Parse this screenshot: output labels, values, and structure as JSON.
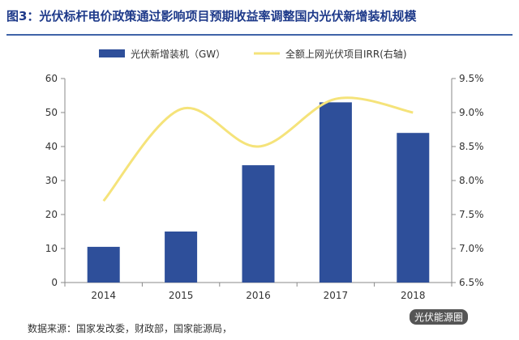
{
  "title": "图3：光伏标杆电价政策通过影响项目预期收益率调整国内光伏新增装机规模",
  "source": "数据来源：国家发改委，财政部，国家能源局，",
  "watermark": "光伏能源圈",
  "chart_data": {
    "type": "bar",
    "categories": [
      "2014",
      "2015",
      "2016",
      "2017",
      "2018"
    ],
    "series": [
      {
        "name": "光伏新增装机（GW）",
        "type": "bar",
        "axis": "left",
        "values": [
          10.5,
          15.0,
          34.5,
          53.0,
          44.0
        ],
        "color": "#2e4f9a"
      },
      {
        "name": "全额上网光伏项目IRR(右轴)",
        "type": "line",
        "axis": "right",
        "values": [
          7.7,
          9.05,
          8.5,
          9.2,
          9.0
        ],
        "color": "#f5e37a"
      }
    ],
    "y_left": {
      "min": 0,
      "max": 60,
      "ticks": [
        "0",
        "10",
        "20",
        "30",
        "40",
        "50",
        "60"
      ]
    },
    "y_right": {
      "min": 6.5,
      "max": 9.5,
      "ticks": [
        "6.5%",
        "7.0%",
        "7.5%",
        "8.0%",
        "8.5%",
        "9.0%",
        "9.5%"
      ]
    },
    "legend_position": "top",
    "grid": false
  }
}
